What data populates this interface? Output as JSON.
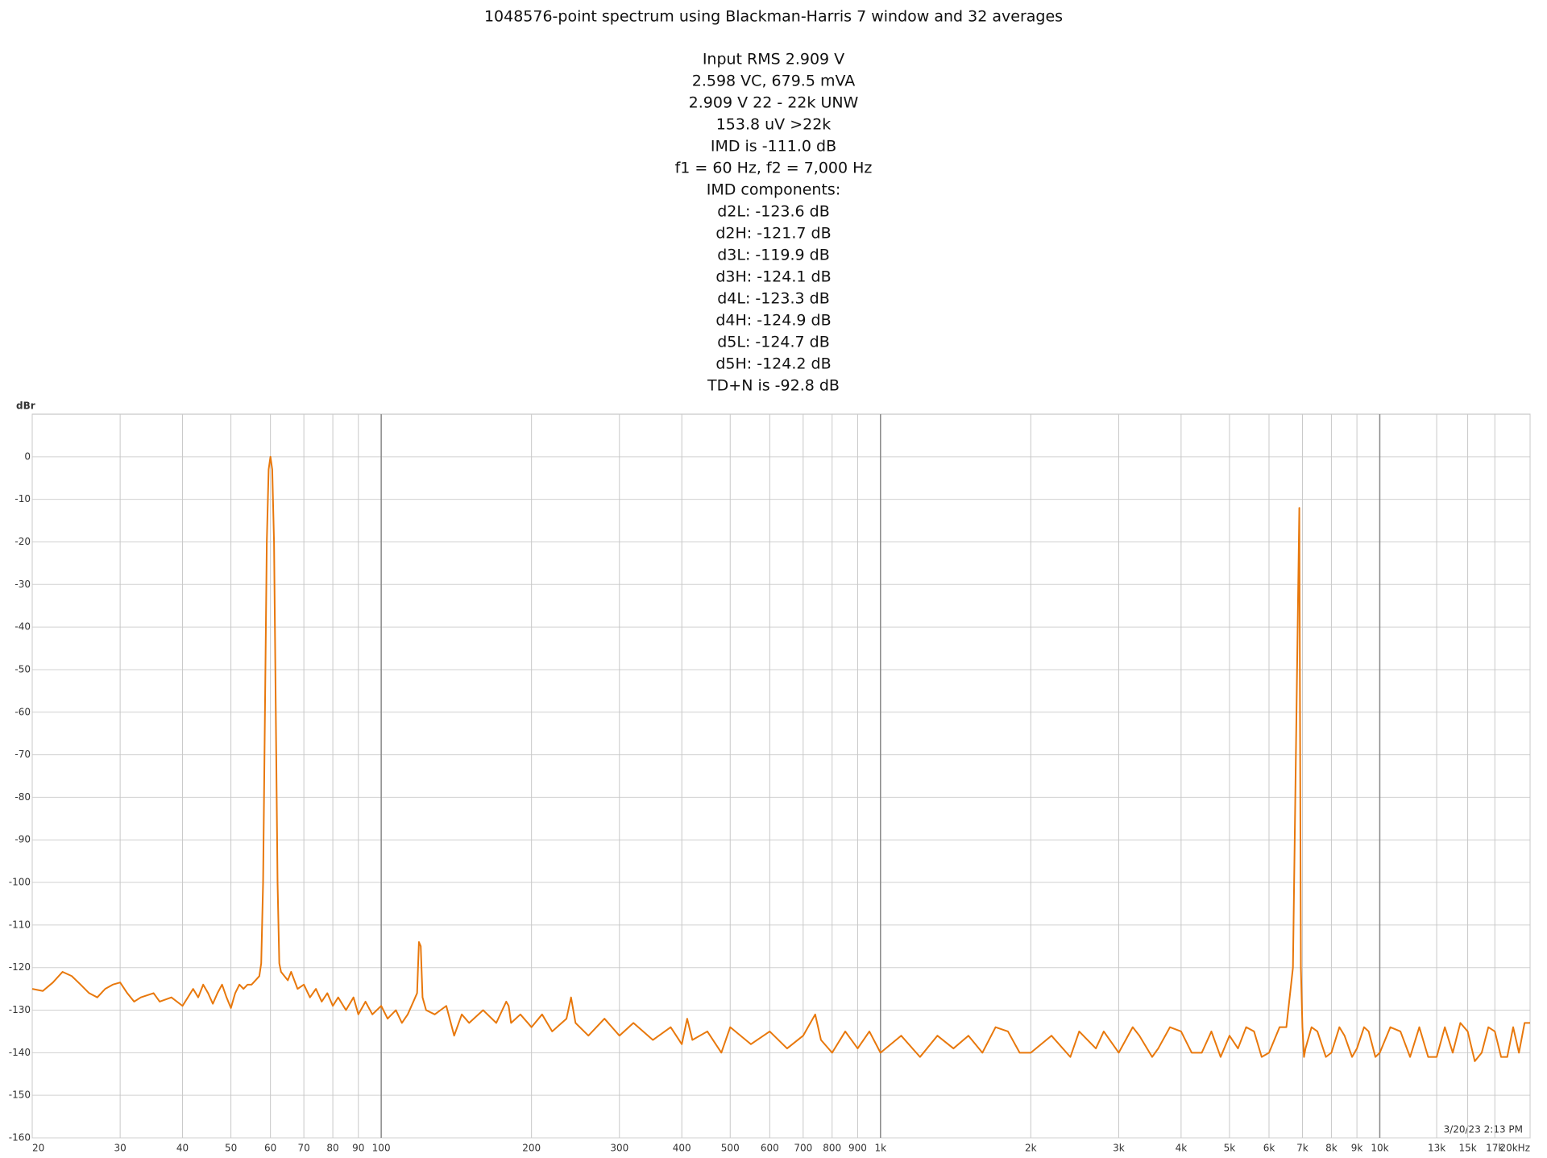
{
  "chart_data": {
    "type": "line",
    "title": "1048576-point spectrum using Blackman-Harris 7 window and 32 averages",
    "annotations": [
      "Input RMS 2.909 V",
      "2.598 VC, 679.5 mVA",
      "2.909 V 22 - 22k UNW",
      "153.8 uV >22k",
      "IMD is -111.0 dB",
      "f1 = 60 Hz, f2 = 7,000 Hz",
      "IMD components:",
      "d2L: -123.6 dB",
      "d2H: -121.7 dB",
      "d3L: -119.9 dB",
      "d3H: -124.1 dB",
      "d4L: -123.3 dB",
      "d4H: -124.9 dB",
      "d5L: -124.7 dB",
      "d5H: -124.2 dB",
      "TD+N is -92.8 dB"
    ],
    "ylabel": "dBr",
    "footnote": "3/20/23 2:13 PM",
    "color": "#e8780c",
    "xscale": "log",
    "grid": true,
    "xlim": [
      20,
      20000
    ],
    "ylim": [
      -160,
      10
    ],
    "xticks": [
      20,
      30,
      40,
      50,
      60,
      70,
      80,
      90,
      100,
      200,
      300,
      400,
      500,
      600,
      700,
      800,
      900,
      {
        "value": 1000,
        "label": "1k"
      },
      {
        "value": 2000,
        "label": "2k"
      },
      {
        "value": 3000,
        "label": "3k"
      },
      {
        "value": 4000,
        "label": "4k"
      },
      {
        "value": 5000,
        "label": "5k"
      },
      {
        "value": 6000,
        "label": "6k"
      },
      {
        "value": 7000,
        "label": "7k"
      },
      {
        "value": 8000,
        "label": "8k"
      },
      {
        "value": 9000,
        "label": "9k"
      },
      {
        "value": 10000,
        "label": "10k"
      },
      {
        "value": 13000,
        "label": "13k"
      },
      {
        "value": 15000,
        "label": "15k"
      },
      {
        "value": 17000,
        "label": "17k"
      },
      {
        "value": 20000,
        "label": "20kHz"
      }
    ],
    "yticks": [
      -160,
      -150,
      -140,
      -130,
      -120,
      -110,
      -100,
      -90,
      -80,
      -70,
      -60,
      -50,
      -40,
      -30,
      -20,
      -10,
      0
    ],
    "x": [
      20,
      21,
      22,
      23,
      24,
      25,
      26,
      27,
      28,
      29,
      30,
      31,
      32,
      33,
      35,
      36,
      38,
      40,
      41,
      42,
      43,
      44,
      45,
      46,
      47,
      48,
      49,
      50,
      51,
      52,
      53,
      54,
      55,
      56,
      57,
      57.5,
      58,
      58.5,
      59,
      59.5,
      60,
      60.5,
      61,
      61.5,
      62,
      62.5,
      63,
      65,
      66,
      68,
      70,
      72,
      74,
      76,
      78,
      80,
      82,
      85,
      88,
      90,
      93,
      96,
      100,
      103,
      107,
      110,
      113,
      116,
      118,
      119,
      120,
      121,
      123,
      128,
      135,
      140,
      145,
      150,
      160,
      170,
      178,
      180,
      182,
      190,
      200,
      210,
      220,
      235,
      240,
      245,
      260,
      280,
      300,
      320,
      350,
      380,
      400,
      410,
      420,
      450,
      480,
      500,
      550,
      600,
      650,
      700,
      740,
      760,
      800,
      850,
      900,
      950,
      1000,
      1100,
      1200,
      1300,
      1400,
      1500,
      1600,
      1700,
      1800,
      1900,
      2000,
      2200,
      2400,
      2500,
      2700,
      2800,
      3000,
      3200,
      3300,
      3500,
      3600,
      3800,
      4000,
      4200,
      4400,
      4600,
      4800,
      5000,
      5200,
      5400,
      5600,
      5800,
      6000,
      6300,
      6500,
      6700,
      6900,
      6950,
      7000,
      7050,
      7100,
      7300,
      7500,
      7800,
      8000,
      8300,
      8500,
      8800,
      9000,
      9300,
      9500,
      9800,
      10000,
      10500,
      11000,
      11500,
      12000,
      12500,
      13000,
      13500,
      14000,
      14500,
      15000,
      15500,
      16000,
      16500,
      17000,
      17500,
      18000,
      18500,
      19000,
      19500,
      20000
    ],
    "values": [
      -125,
      -125.5,
      -123.5,
      -121,
      -122,
      -124,
      -126,
      -127,
      -125,
      -124,
      -123.5,
      -126,
      -128,
      -127,
      -126,
      -128,
      -127,
      -129,
      -127,
      -125,
      -127,
      -124,
      -126,
      -128.5,
      -126,
      -124,
      -127,
      -129.5,
      -126,
      -124,
      -125,
      -124,
      -124,
      -123,
      -122,
      -119,
      -100,
      -60,
      -20,
      -3,
      0,
      -3,
      -20,
      -60,
      -100,
      -119,
      -121,
      -123,
      -121,
      -125,
      -124,
      -127,
      -125,
      -128,
      -126,
      -129,
      -127,
      -130,
      -127,
      -131,
      -128,
      -131,
      -129,
      -132,
      -130,
      -133,
      -131,
      -128,
      -126,
      -114,
      -115,
      -127,
      -130,
      -131,
      -129,
      -136,
      -131,
      -133,
      -130,
      -133,
      -128,
      -129,
      -133,
      -131,
      -134,
      -131,
      -135,
      -132,
      -127,
      -133,
      -136,
      -132,
      -136,
      -133,
      -137,
      -134,
      -138,
      -132,
      -137,
      -135,
      -140,
      -134,
      -138,
      -135,
      -139,
      -136,
      -131,
      -137,
      -140,
      -135,
      -139,
      -135,
      -140,
      -136,
      -141,
      -136,
      -139,
      -136,
      -140,
      -134,
      -135,
      -140,
      -140,
      -136,
      -141,
      -135,
      -139,
      -135,
      -140,
      -134,
      -136,
      -141,
      -139,
      -134,
      -135,
      -140,
      -140,
      -135,
      -141,
      -136,
      -139,
      -134,
      -135,
      -141,
      -140,
      -134,
      -134,
      -120,
      -12,
      -120,
      -134,
      -141,
      -139,
      -134,
      -135,
      -141,
      -140,
      -134,
      -136,
      -141,
      -139,
      -134,
      -135,
      -141,
      -140,
      -134,
      -135,
      -141,
      -134,
      -141,
      -141,
      -134,
      -140,
      -133,
      -135,
      -142,
      -140,
      -134,
      -135,
      -141,
      -141,
      -134,
      -140,
      -133,
      -133
    ]
  }
}
